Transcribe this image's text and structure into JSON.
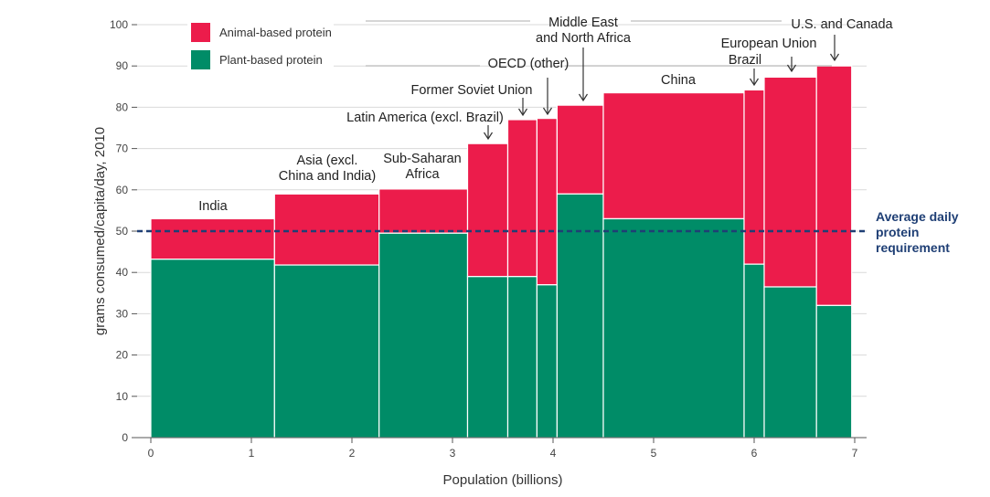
{
  "chart_data": {
    "type": "bar",
    "subtype": "variable-width stacked bar (marimekko)",
    "xlabel": "Population (billions)",
    "ylabel": "grams consumed/capita/day, 2010",
    "xlim": [
      0,
      7
    ],
    "ylim": [
      0,
      100
    ],
    "x_ticks": [
      "0",
      "1",
      "2",
      "3",
      "4",
      "5",
      "6",
      "7"
    ],
    "y_ticks": [
      "0",
      "10",
      "20",
      "30",
      "40",
      "50",
      "60",
      "70",
      "80",
      "90",
      "100"
    ],
    "grid": "horizontal",
    "legend_position": "top-left",
    "colors": {
      "animal": "#ec1c4b",
      "plant": "#008c67",
      "reference": "#1f3f75"
    },
    "series": [
      {
        "name": "Animal-based protein",
        "key": "animal"
      },
      {
        "name": "Plant-based protein",
        "key": "plant"
      }
    ],
    "regions": [
      {
        "label": [
          "India"
        ],
        "x_start": 0.0,
        "x_end": 1.23,
        "plant": 43.2,
        "total": 53.0,
        "arrow": false
      },
      {
        "label": [
          "Asia (excl.",
          "China and India)"
        ],
        "x_start": 1.23,
        "x_end": 2.27,
        "plant": 41.8,
        "total": 59.0,
        "arrow": false
      },
      {
        "label": [
          "Sub-Saharan",
          "Africa"
        ],
        "x_start": 2.27,
        "x_end": 3.15,
        "plant": 49.5,
        "total": 60.2,
        "arrow": false
      },
      {
        "label": [
          "Latin America (excl. Brazil)"
        ],
        "x_start": 3.15,
        "x_end": 3.55,
        "plant": 39.0,
        "total": 71.2,
        "arrow": true
      },
      {
        "label": [
          "Former Soviet Union"
        ],
        "x_start": 3.55,
        "x_end": 3.84,
        "plant": 39.0,
        "total": 77.0,
        "arrow": true
      },
      {
        "label": [
          "OECD (other)"
        ],
        "x_start": 3.84,
        "x_end": 4.04,
        "plant": 37.0,
        "total": 77.3,
        "arrow": true
      },
      {
        "label": [
          "Middle East",
          "and North Africa"
        ],
        "x_start": 4.04,
        "x_end": 4.5,
        "plant": 59.0,
        "total": 80.5,
        "arrow": true
      },
      {
        "label": [
          "China"
        ],
        "x_start": 4.5,
        "x_end": 5.9,
        "plant": 53.0,
        "total": 83.5,
        "arrow": false
      },
      {
        "label": [
          "Brazil"
        ],
        "x_start": 5.9,
        "x_end": 6.1,
        "plant": 42.0,
        "total": 84.2,
        "arrow": true
      },
      {
        "label": [
          "European Union"
        ],
        "x_start": 6.1,
        "x_end": 6.62,
        "plant": 36.5,
        "total": 87.3,
        "arrow": true
      },
      {
        "label": [
          "U.S. and Canada"
        ],
        "x_start": 6.62,
        "x_end": 6.97,
        "plant": 32.0,
        "total": 90.0,
        "arrow": true
      }
    ],
    "reference_line": {
      "value": 50,
      "label": [
        "Average daily",
        "protein",
        "requirement"
      ]
    }
  }
}
